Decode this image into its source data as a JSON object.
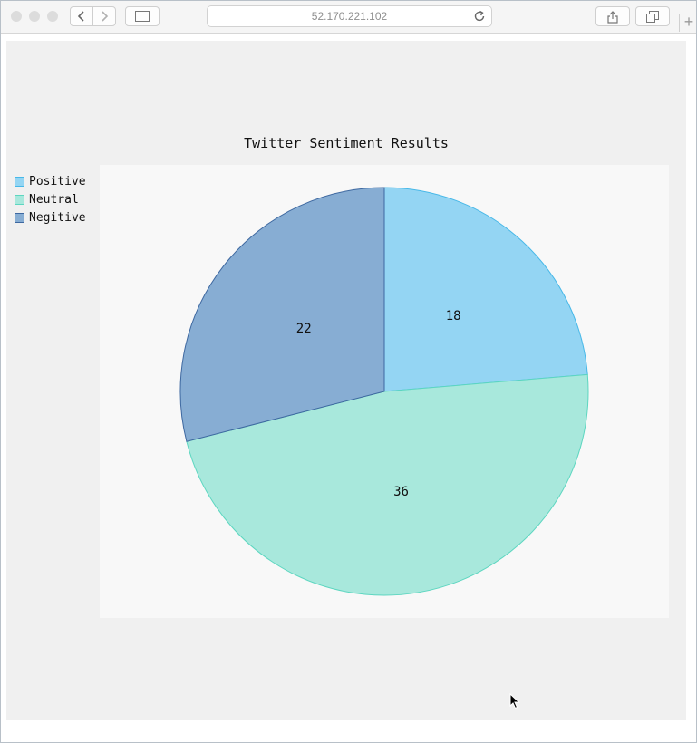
{
  "browser": {
    "address": "52.170.221.102",
    "new_tab_label": "+"
  },
  "colors": {
    "positive_fill": "#94d5f3",
    "positive_stroke": "#47b8e8",
    "neutral_fill": "#a8e8dc",
    "neutral_stroke": "#5dd6c0",
    "negative_fill": "#87adD3",
    "negative_stroke": "#3e68a0"
  },
  "chart_data": {
    "type": "pie",
    "title": "Twitter Sentiment Results",
    "legend_position": "top-left",
    "slices": [
      {
        "label": "Positive",
        "value": 18
      },
      {
        "label": "Neutral",
        "value": 36
      },
      {
        "label": "Negitive",
        "value": 22
      }
    ]
  }
}
